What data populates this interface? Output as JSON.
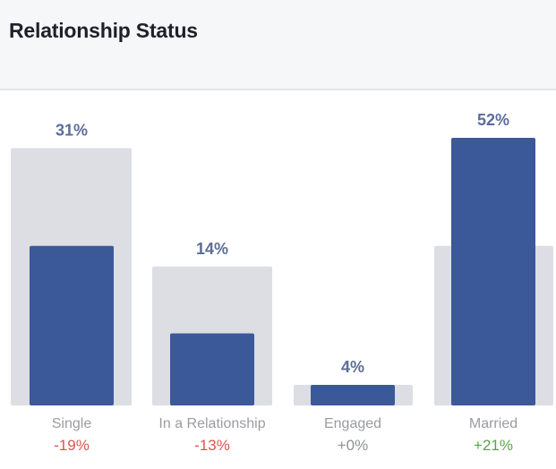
{
  "header": {
    "title": "Relationship Status"
  },
  "chart_data": {
    "type": "bar",
    "categories": [
      "Single",
      "In a Relationship",
      "Engaged",
      "Married"
    ],
    "series": [
      {
        "values": [
          31,
          14,
          4,
          52
        ],
        "color": "#3b5998"
      },
      {
        "values": [
          50,
          27,
          4,
          31
        ],
        "color": "#dcdee3"
      }
    ],
    "value_labels": [
      "31%",
      "14%",
      "4%",
      "52%"
    ],
    "deltas": [
      "-19%",
      "-13%",
      "+0%",
      "+21%"
    ],
    "delta_colors": [
      "#e0524c",
      "#e0524c",
      "#8f9196",
      "#5aa646"
    ],
    "ylim": [
      0,
      60
    ],
    "title": "",
    "xlabel": "",
    "ylabel": "",
    "grid": false,
    "legend": "none",
    "colors": {
      "bar": "#3b5998",
      "background_bar": "#dcdee3",
      "value_label": "#5b6d99",
      "category_label": "#9a9ca1"
    }
  }
}
